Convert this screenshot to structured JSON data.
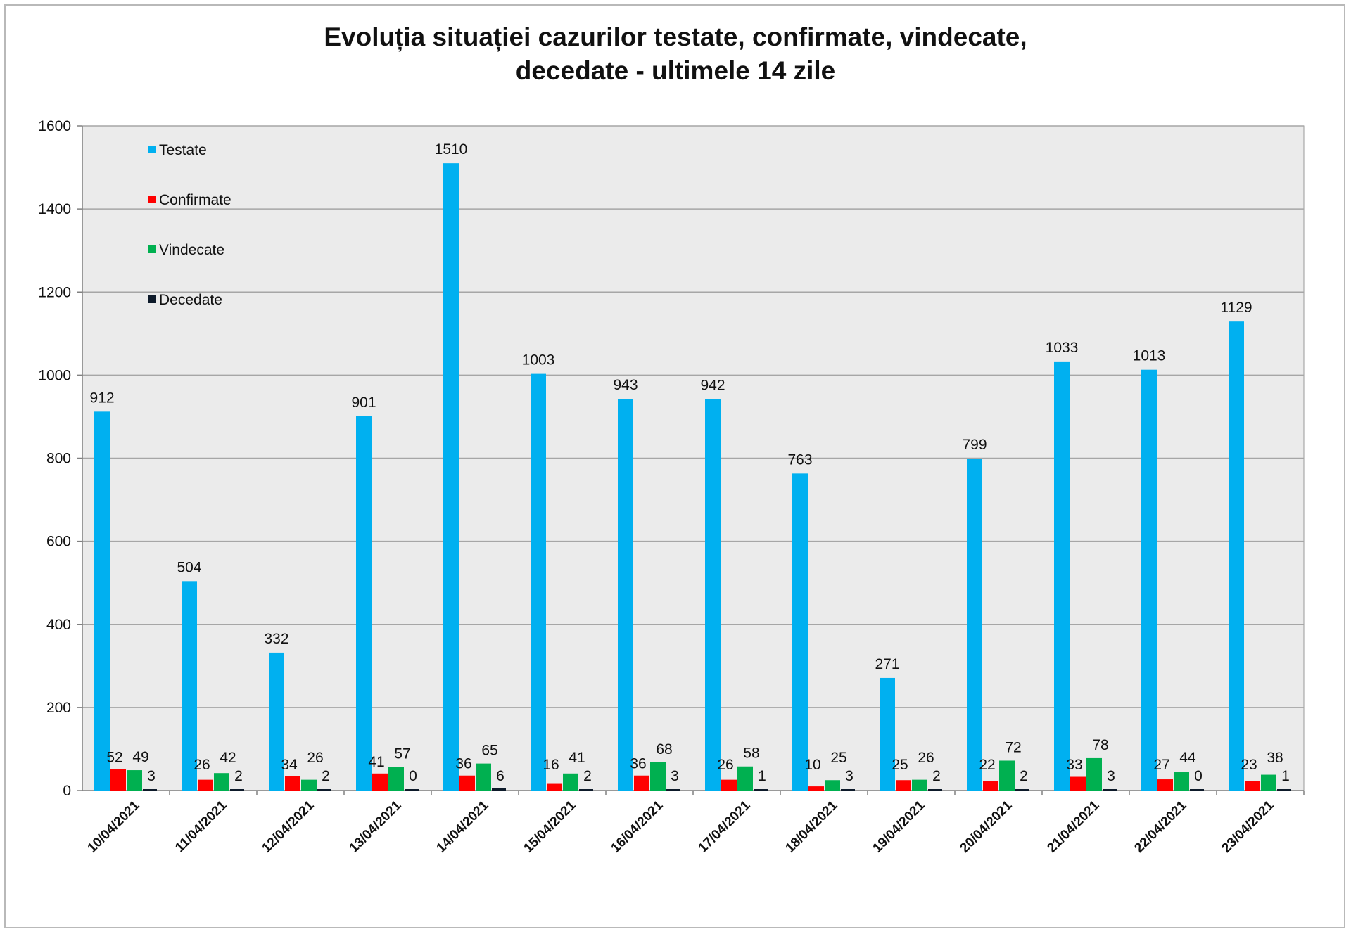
{
  "chart_data": {
    "type": "bar",
    "title_lines": [
      "Evoluția situației cazurilor testate, confirmate, vindecate,",
      "decedate -  ultimele 14 zile"
    ],
    "categories": [
      "10/04/2021",
      "11/04/2021",
      "12/04/2021",
      "13/04/2021",
      "14/04/2021",
      "15/04/2021",
      "16/04/2021",
      "17/04/2021",
      "18/04/2021",
      "19/04/2021",
      "20/04/2021",
      "21/04/2021",
      "22/04/2021",
      "23/04/2021"
    ],
    "series": [
      {
        "name": "Testate",
        "color": "#00b0f0",
        "values": [
          912,
          504,
          332,
          901,
          1510,
          1003,
          943,
          942,
          763,
          271,
          799,
          1033,
          1013,
          1129
        ]
      },
      {
        "name": "Confirmate",
        "color": "#ff0000",
        "values": [
          52,
          26,
          34,
          41,
          36,
          16,
          36,
          26,
          10,
          25,
          22,
          33,
          27,
          23
        ]
      },
      {
        "name": "Vindecate",
        "color": "#00b050",
        "values": [
          49,
          42,
          26,
          57,
          65,
          41,
          68,
          58,
          25,
          26,
          72,
          78,
          44,
          38
        ]
      },
      {
        "name": "Decedate",
        "color": "#0d1a2a",
        "values": [
          3,
          2,
          2,
          0,
          6,
          2,
          3,
          1,
          3,
          2,
          2,
          3,
          0,
          1
        ]
      }
    ],
    "ylim": [
      0,
      1600
    ],
    "yticks": [
      0,
      200,
      400,
      600,
      800,
      1000,
      1200,
      1400,
      1600
    ],
    "grid": true,
    "legend_position": "top-left inside plot",
    "plot_background": "#ebebeb",
    "xlabel": "",
    "ylabel": ""
  }
}
